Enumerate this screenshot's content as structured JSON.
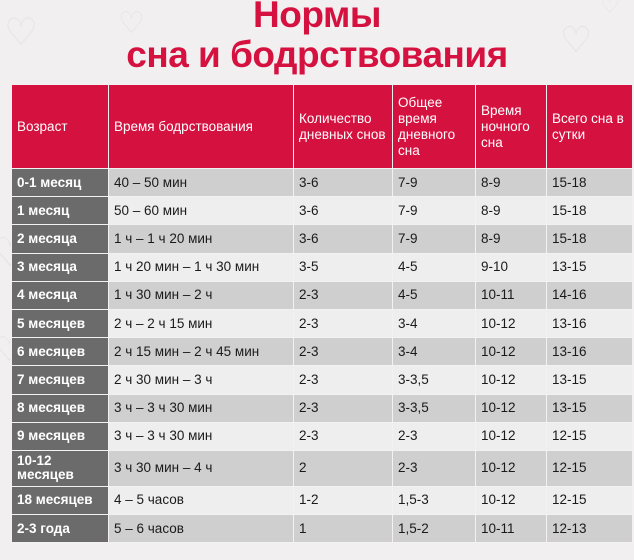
{
  "title_line1": "Нормы",
  "title_line2": "сна и бодрствования",
  "header": {
    "age": "Возраст",
    "wake": "Время бодрствования",
    "naps": "Количество дневных снов",
    "daysleep": "Общее время дневного сна",
    "nightsleep": "Время ночного сна",
    "total": "Всего сна в сутки"
  },
  "rows": [
    {
      "age": "0-1 месяц",
      "wake": "40 – 50 мин",
      "naps": "3-6",
      "daysleep": "7-9",
      "nightsleep": "8-9",
      "total": "15-18"
    },
    {
      "age": "1 месяц",
      "wake": "50 – 60 мин",
      "naps": "3-6",
      "daysleep": "7-9",
      "nightsleep": "8-9",
      "total": "15-18"
    },
    {
      "age": "2 месяца",
      "wake": "1 ч – 1 ч 20 мин",
      "naps": "3-6",
      "daysleep": "7-9",
      "nightsleep": "8-9",
      "total": "15-18"
    },
    {
      "age": "3 месяца",
      "wake": "1 ч 20 мин – 1 ч 30 мин",
      "naps": "3-5",
      "daysleep": "4-5",
      "nightsleep": "9-10",
      "total": "13-15"
    },
    {
      "age": "4 месяца",
      "wake": "1 ч 30 мин – 2 ч",
      "naps": "2-3",
      "daysleep": "4-5",
      "nightsleep": "10-11",
      "total": "14-16"
    },
    {
      "age": "5 месяцев",
      "wake": "2 ч – 2 ч 15 мин",
      "naps": "2-3",
      "daysleep": "3-4",
      "nightsleep": "10-12",
      "total": "13-16"
    },
    {
      "age": "6 месяцев",
      "wake": "2 ч 15 мин – 2 ч 45 мин",
      "naps": "2-3",
      "daysleep": "3-4",
      "nightsleep": "10-12",
      "total": "13-16"
    },
    {
      "age": "7 месяцев",
      "wake": "2 ч 30 мин – 3 ч",
      "naps": "2-3",
      "daysleep": "3-3,5",
      "nightsleep": "10-12",
      "total": "13-15"
    },
    {
      "age": "8 месяцев",
      "wake": "3 ч – 3 ч 30 мин",
      "naps": "2-3",
      "daysleep": "3-3,5",
      "nightsleep": "10-12",
      "total": "13-15"
    },
    {
      "age": "9 месяцев",
      "wake": "3 ч – 3 ч 30 мин",
      "naps": "2-3",
      "daysleep": "2-3",
      "nightsleep": "10-12",
      "total": "12-15"
    },
    {
      "age": "10-12 месяцев",
      "wake": "3 ч 30 мин – 4 ч",
      "naps": "2",
      "daysleep": "2-3",
      "nightsleep": "10-12",
      "total": "12-15"
    },
    {
      "age": "18 месяцев",
      "wake": "4 – 5 часов",
      "naps": "1-2",
      "daysleep": "1,5-3",
      "nightsleep": "10-12",
      "total": "12-15"
    },
    {
      "age": "2-3 года",
      "wake": "5 – 6 часов",
      "naps": "1",
      "daysleep": "1,5-2",
      "nightsleep": "10-11",
      "total": "12-13"
    }
  ],
  "colors": {
    "accent": "#d5113f",
    "age_cell": "#6b6b6b",
    "row_dark": "#cfcfcf",
    "row_light": "#eeeeee",
    "background": "#f1eff0"
  },
  "decor_icon": "heart-icon"
}
